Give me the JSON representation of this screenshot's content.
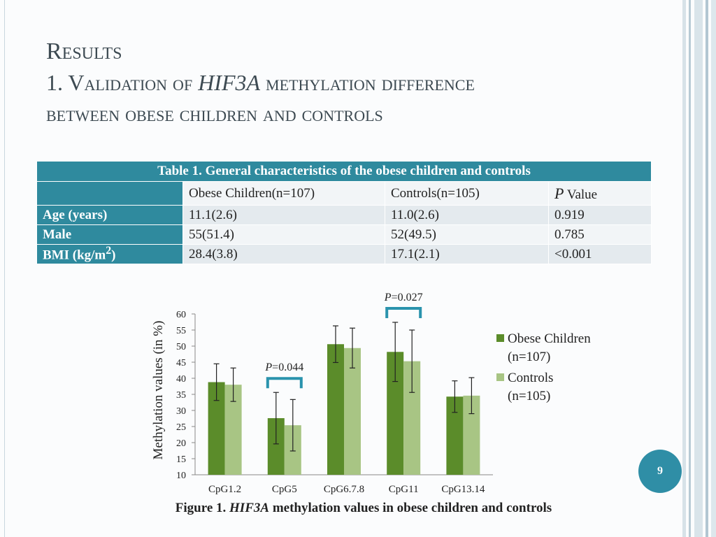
{
  "slide": {
    "title_line1": "Results",
    "title_line2_prefix": "1. Validation of ",
    "title_line2_gene": "HIF3A",
    "title_line2_suffix": " methylation difference",
    "title_line3": "between obese children and controls",
    "page_number": "9"
  },
  "table": {
    "caption": "Table 1. General characteristics of the obese children and controls",
    "headers": [
      "",
      "Obese Children(n=107)",
      "Controls(n=105)",
      "P",
      " Value"
    ],
    "rows": [
      {
        "label": "Age (years)",
        "obese": "11.1(2.6)",
        "controls": "11.0(2.6)",
        "p": "0.919"
      },
      {
        "label": "Male",
        "obese": "55(51.4)",
        "controls": "52(49.5)",
        "p": "0.785"
      },
      {
        "label_main": "BMI (kg/m",
        "label_sup": "2",
        "label_end": ")",
        "obese": "28.4(3.8)",
        "controls": "17.1(2.1)",
        "p": "<0.001"
      }
    ]
  },
  "figure_caption": {
    "prefix": "Figure 1. ",
    "gene": "HIF3A",
    "suffix": " methylation values in obese children and controls"
  },
  "colors": {
    "accent": "#2f8a9e",
    "obese": "#5b8c2a",
    "controls": "#a8c584",
    "bracket": "#2a93ad"
  },
  "chart_data": {
    "type": "bar",
    "title": "",
    "xlabel": "",
    "ylabel": "Methylation values (in %)",
    "ylim": [
      10,
      60
    ],
    "yticks": [
      10,
      15,
      20,
      25,
      30,
      35,
      40,
      45,
      50,
      55,
      60
    ],
    "categories": [
      "CpG1.2",
      "CpG5",
      "CpG6.7.8",
      "CpG11",
      "CpG13.14"
    ],
    "series": [
      {
        "name": "Obese Children",
        "legend_line2": "(n=107)",
        "values": [
          38.8,
          27.6,
          50.6,
          48.2,
          34.3
        ],
        "error": [
          5.7,
          8.0,
          5.7,
          9.2,
          4.9
        ]
      },
      {
        "name": "Controls",
        "legend_line2": "(n=105)",
        "values": [
          38.0,
          25.4,
          49.4,
          45.3,
          34.6
        ],
        "error": [
          5.2,
          8.0,
          6.2,
          9.7,
          5.6
        ]
      }
    ],
    "annotations": [
      {
        "category_index": 1,
        "p_label": "P",
        "p_value": "=0.044"
      },
      {
        "category_index": 3,
        "p_label": "P",
        "p_value": "=0.027"
      }
    ],
    "legend_position": "right"
  }
}
